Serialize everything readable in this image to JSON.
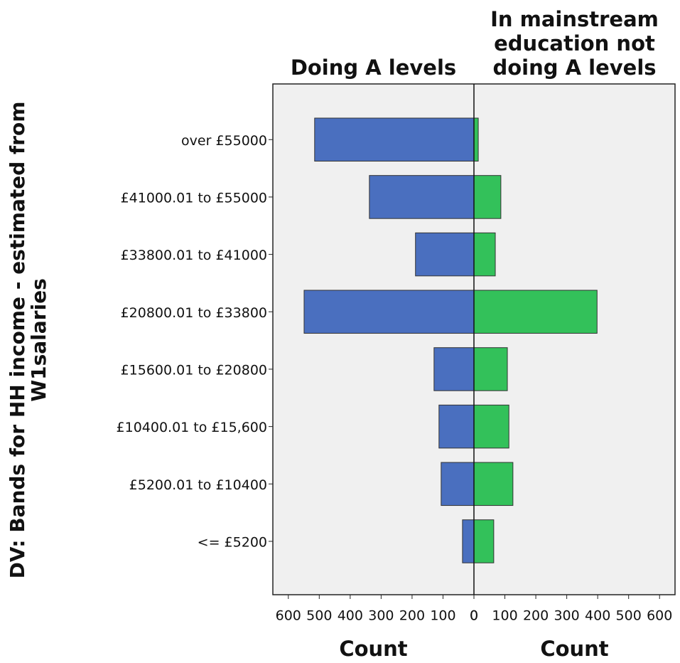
{
  "chart_data": {
    "type": "pyramid",
    "ylabel": "DV: Bands for HH income - estimated from W1salaries",
    "categories": [
      "over £55000",
      "£41000.01 to £55000",
      "£33800.01 to £41000",
      "£20800.01 to £33800",
      "£15600.01 to £20800",
      "£10400.01 to £15,600",
      "£5200.01 to £10400",
      "<= £5200"
    ],
    "series": [
      {
        "name": "Doing A levels",
        "color": "#4a6fbf",
        "xlabel": "Count",
        "values": [
          515,
          338,
          189,
          549,
          129,
          113,
          106,
          37
        ]
      },
      {
        "name": "In mainstream education not doing A levels",
        "color": "#33c15a",
        "xlabel": "Count",
        "values": [
          14,
          87,
          69,
          398,
          108,
          113,
          126,
          64
        ]
      }
    ],
    "xlim": [
      0,
      650
    ],
    "xticks": [
      0,
      100,
      200,
      300,
      400,
      500,
      600
    ]
  }
}
